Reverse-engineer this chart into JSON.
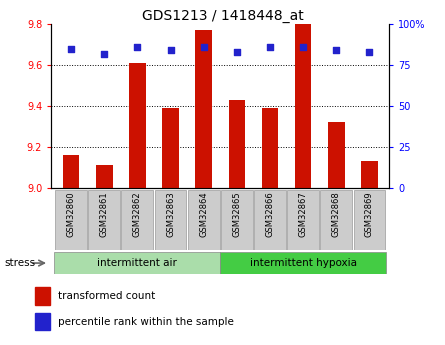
{
  "title": "GDS1213 / 1418448_at",
  "samples": [
    "GSM32860",
    "GSM32861",
    "GSM32862",
    "GSM32863",
    "GSM32864",
    "GSM32865",
    "GSM32866",
    "GSM32867",
    "GSM32868",
    "GSM32869"
  ],
  "transformed_counts": [
    9.16,
    9.11,
    9.61,
    9.39,
    9.77,
    9.43,
    9.39,
    9.8,
    9.32,
    9.13
  ],
  "percentile_ranks": [
    85,
    82,
    86,
    84,
    86,
    83,
    86,
    86,
    84,
    83
  ],
  "group1_label": "intermittent air",
  "group2_label": "intermittent hypoxia",
  "group1_count": 5,
  "group2_count": 5,
  "stress_label": "stress",
  "ylim_left": [
    9.0,
    9.8
  ],
  "ylim_right": [
    0,
    100
  ],
  "yticks_left": [
    9.0,
    9.2,
    9.4,
    9.6,
    9.8
  ],
  "yticks_right": [
    0,
    25,
    50,
    75,
    100
  ],
  "ytick_labels_right": [
    "0",
    "25",
    "50",
    "75",
    "100%"
  ],
  "bar_color": "#cc1100",
  "dot_color": "#2222cc",
  "group1_bg": "#aaddaa",
  "group2_bg": "#44cc44",
  "sample_bg": "#cccccc",
  "legend_bar_label": "transformed count",
  "legend_dot_label": "percentile rank within the sample"
}
